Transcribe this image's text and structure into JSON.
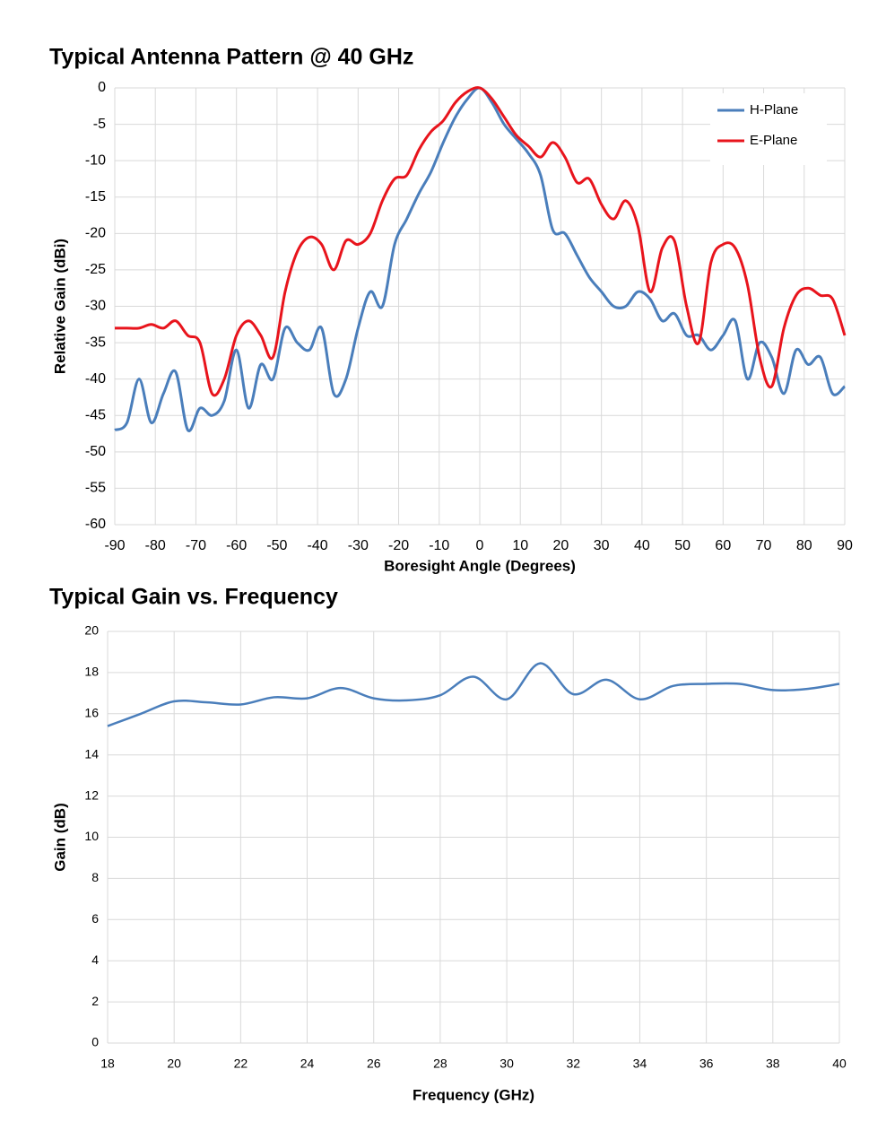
{
  "chart_data": [
    {
      "type": "line",
      "title": "Typical Antenna Pattern @ 40 GHz",
      "x_label": "Boresight Angle (Degrees)",
      "y_label": "Relative Gain (dBi)",
      "x": [
        -90,
        -87,
        -84,
        -81,
        -78,
        -75,
        -72,
        -69,
        -66,
        -63,
        -60,
        -57,
        -54,
        -51,
        -48,
        -45,
        -42,
        -39,
        -36,
        -33,
        -30,
        -27,
        -24,
        -21,
        -18,
        -15,
        -12,
        -9,
        -6,
        -3,
        0,
        3,
        6,
        9,
        12,
        15,
        18,
        21,
        24,
        27,
        30,
        33,
        36,
        39,
        42,
        45,
        48,
        51,
        54,
        57,
        60,
        63,
        66,
        69,
        72,
        75,
        78,
        81,
        84,
        87,
        90
      ],
      "series": [
        {
          "name": "H-Plane",
          "color": "#4a7ebb",
          "values": [
            -47,
            -46,
            -40,
            -46,
            -42,
            -39,
            -47,
            -44,
            -45,
            -43,
            -36,
            -44,
            -38,
            -40,
            -33,
            -35,
            -36,
            -33,
            -42,
            -40,
            -33,
            -28,
            -30,
            -21.5,
            -18,
            -14.5,
            -11.5,
            -7.5,
            -4,
            -1.5,
            0,
            -2,
            -5,
            -7,
            -9,
            -12,
            -19.5,
            -20,
            -23,
            -26,
            -28,
            -30,
            -30,
            -28,
            -29,
            -32,
            -31,
            -34,
            -34,
            -36,
            -34,
            -32,
            -40,
            -35,
            -37,
            -42,
            -36,
            -38,
            -37,
            -42,
            -41
          ]
        },
        {
          "name": "E-Plane",
          "color": "#e8141c",
          "values": [
            -33,
            -33,
            -33,
            -32.5,
            -33,
            -32,
            -34,
            -35,
            -42,
            -40,
            -34,
            -32,
            -34,
            -37,
            -28,
            -22.5,
            -20.5,
            -21.5,
            -25,
            -21,
            -21.5,
            -20,
            -15.5,
            -12.5,
            -12,
            -8.5,
            -6,
            -4.5,
            -2,
            -0.5,
            0,
            -1.5,
            -4,
            -6.5,
            -8,
            -9.5,
            -7.5,
            -9.5,
            -13,
            -12.5,
            -16,
            -18,
            -15.5,
            -19,
            -28,
            -22,
            -21,
            -30,
            -35,
            -24,
            -21.5,
            -22,
            -27,
            -37,
            -41,
            -33,
            -28.5,
            -27.5,
            -28.5,
            -29,
            -34
          ]
        }
      ],
      "xlim": [
        -90,
        90
      ],
      "xticks": [
        -90,
        -80,
        -70,
        -60,
        -50,
        -40,
        -30,
        -20,
        -10,
        0,
        10,
        20,
        30,
        40,
        50,
        60,
        70,
        80,
        90
      ],
      "ylim": [
        -60,
        0
      ],
      "yticks": [
        0,
        -5,
        -10,
        -15,
        -20,
        -25,
        -30,
        -35,
        -40,
        -45,
        -50,
        -55,
        -60
      ],
      "grid": true,
      "legend": "upper right"
    },
    {
      "type": "line",
      "title": "Typical Gain vs. Frequency",
      "x_label": "Frequency (GHz)",
      "y_label": "Gain (dB)",
      "x": [
        18,
        19,
        20,
        21,
        22,
        23,
        24,
        25,
        26,
        27,
        28,
        29,
        30,
        31,
        32,
        33,
        34,
        35,
        36,
        37,
        38,
        39,
        40
      ],
      "values": [
        15.4,
        16.0,
        16.6,
        16.55,
        16.45,
        16.8,
        16.75,
        17.25,
        16.75,
        16.65,
        16.9,
        17.8,
        16.7,
        18.45,
        16.95,
        17.65,
        16.7,
        17.35,
        17.45,
        17.45,
        17.15,
        17.2,
        17.45
      ],
      "color": "#4a7ebb",
      "xlim": [
        18,
        40
      ],
      "xticks": [
        18,
        20,
        22,
        24,
        26,
        28,
        30,
        32,
        34,
        36,
        38,
        40
      ],
      "ylim": [
        0,
        20
      ],
      "yticks": [
        0,
        2,
        4,
        6,
        8,
        10,
        12,
        14,
        16,
        18,
        20
      ],
      "grid": true
    }
  ]
}
